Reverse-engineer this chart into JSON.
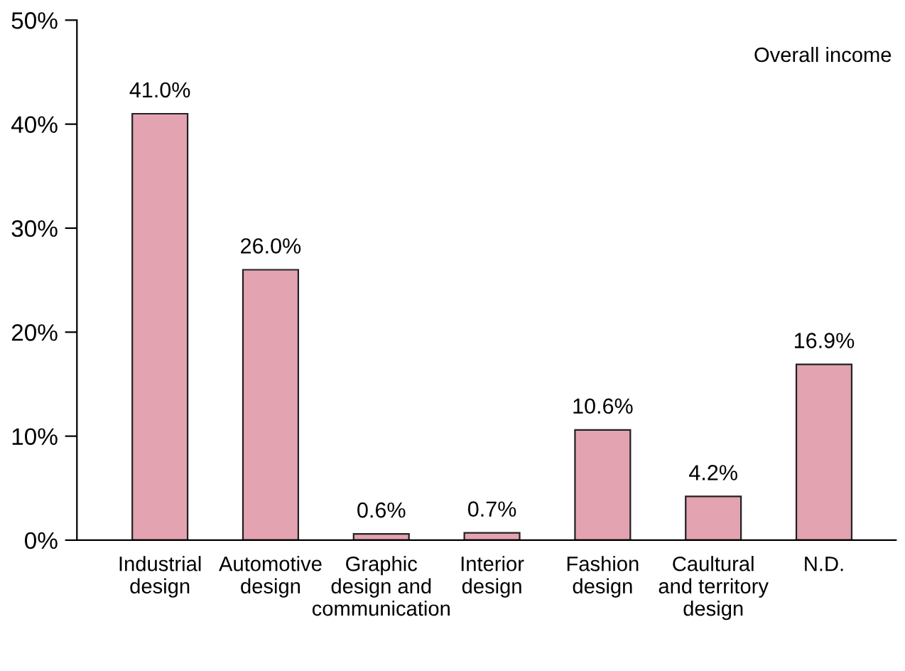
{
  "chart_data": {
    "type": "bar",
    "categories": [
      "Industrial\ndesign",
      "Automotive\ndesign",
      "Graphic\ndesign and\ncommunication",
      "Interior\ndesign",
      "Fashion\ndesign",
      "Caultural\nand territory\ndesign",
      "N.D."
    ],
    "values": [
      41.0,
      26.0,
      0.6,
      0.7,
      10.6,
      4.2,
      16.9
    ],
    "value_labels": [
      "41.0%",
      "26.0%",
      "0.6%",
      "0.7%",
      "10.6%",
      "4.2%",
      "16.9%"
    ],
    "color": "#e3a3b1",
    "ylim": [
      0,
      50
    ],
    "yticks": [
      {
        "value": 0,
        "label": "0%"
      },
      {
        "value": 10,
        "label": "10%"
      },
      {
        "value": 20,
        "label": "20%"
      },
      {
        "value": 30,
        "label": "30%"
      },
      {
        "value": 40,
        "label": "40%"
      },
      {
        "value": 50,
        "label": "50%"
      }
    ],
    "annotations": [
      "Overall income"
    ],
    "grid": false,
    "legend": false
  }
}
